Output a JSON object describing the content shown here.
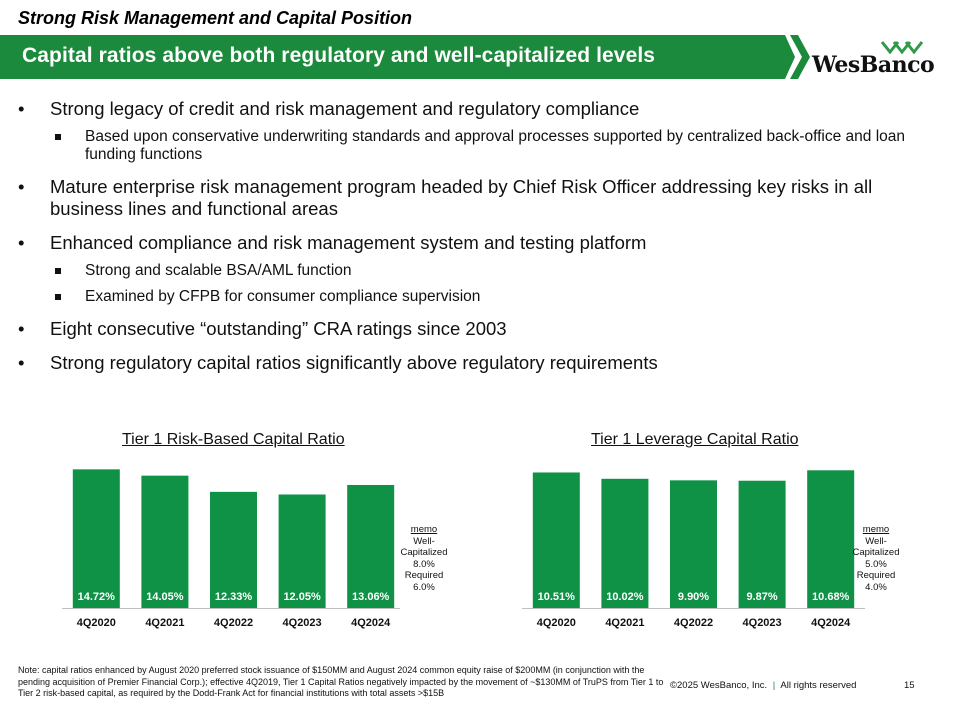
{
  "header": {
    "section_title": "Strong Risk Management and Capital Position",
    "banner": "Capital ratios above both regulatory and well-capitalized levels",
    "logo_text": "WesBanco"
  },
  "colors": {
    "brand_green": "#0f9146",
    "banner_green": "#1b8a3c",
    "logo_green": "#2e9a4a"
  },
  "bullets": [
    {
      "text": "Strong legacy of credit and risk management and regulatory compliance",
      "sub": [
        "Based upon conservative underwriting standards and approval processes supported by centralized back-office and loan funding functions"
      ]
    },
    {
      "text": "Mature enterprise risk management program headed by Chief Risk Officer addressing key risks in all business lines and functional areas",
      "sub": []
    },
    {
      "text": "Enhanced compliance and risk management system and testing platform",
      "sub": [
        "Strong and scalable BSA/AML function",
        "Examined by CFPB for consumer compliance supervision"
      ]
    },
    {
      "text": "Eight consecutive “outstanding” CRA ratings since 2003",
      "sub": []
    },
    {
      "text": "Strong regulatory capital ratios significantly above regulatory requirements",
      "sub": []
    }
  ],
  "bullet_glyph": "•",
  "chart_data": [
    {
      "type": "bar",
      "title": "Tier 1 Risk-Based Capital Ratio",
      "categories": [
        "4Q2020",
        "4Q2021",
        "4Q2022",
        "4Q2023",
        "4Q2024"
      ],
      "values": [
        14.72,
        14.05,
        12.33,
        12.05,
        13.06
      ],
      "labels": [
        "14.72%",
        "14.05%",
        "12.33%",
        "12.05%",
        "13.06%"
      ],
      "ylim": [
        0,
        15.5
      ],
      "grid": false,
      "memo": [
        "memo",
        "Well-",
        "Capitalized",
        "8.0%",
        "Required",
        "6.0%"
      ]
    },
    {
      "type": "bar",
      "title": "Tier 1 Leverage Capital Ratio",
      "categories": [
        "4Q2020",
        "4Q2021",
        "4Q2022",
        "4Q2023",
        "4Q2024"
      ],
      "values": [
        10.51,
        10.02,
        9.9,
        9.87,
        10.68
      ],
      "labels": [
        "10.51%",
        "10.02%",
        "9.90%",
        "9.87%",
        "10.68%"
      ],
      "ylim": [
        0,
        11.4
      ],
      "grid": false,
      "memo": [
        "memo",
        "Well-",
        "Capitalized",
        "5.0%",
        "Required",
        "4.0%"
      ]
    }
  ],
  "note": "Note: capital ratios enhanced by August 2020 preferred stock issuance of $150MM and August 2024 common equity raise of $200MM (in conjunction with the pending acquisition of Premier Financial Corp.); effective 4Q2019, Tier 1 Capital Ratios negatively impacted by the movement of ~$130MM of TruPS from Tier 1 to Tier 2 risk-based capital, as required by the Dodd-Frank Act for financial institutions with total assets >$15B",
  "footer": {
    "copyright": "©2025 WesBanco, Inc.",
    "separator": "|",
    "rights": "All rights reserved",
    "page": "15"
  }
}
